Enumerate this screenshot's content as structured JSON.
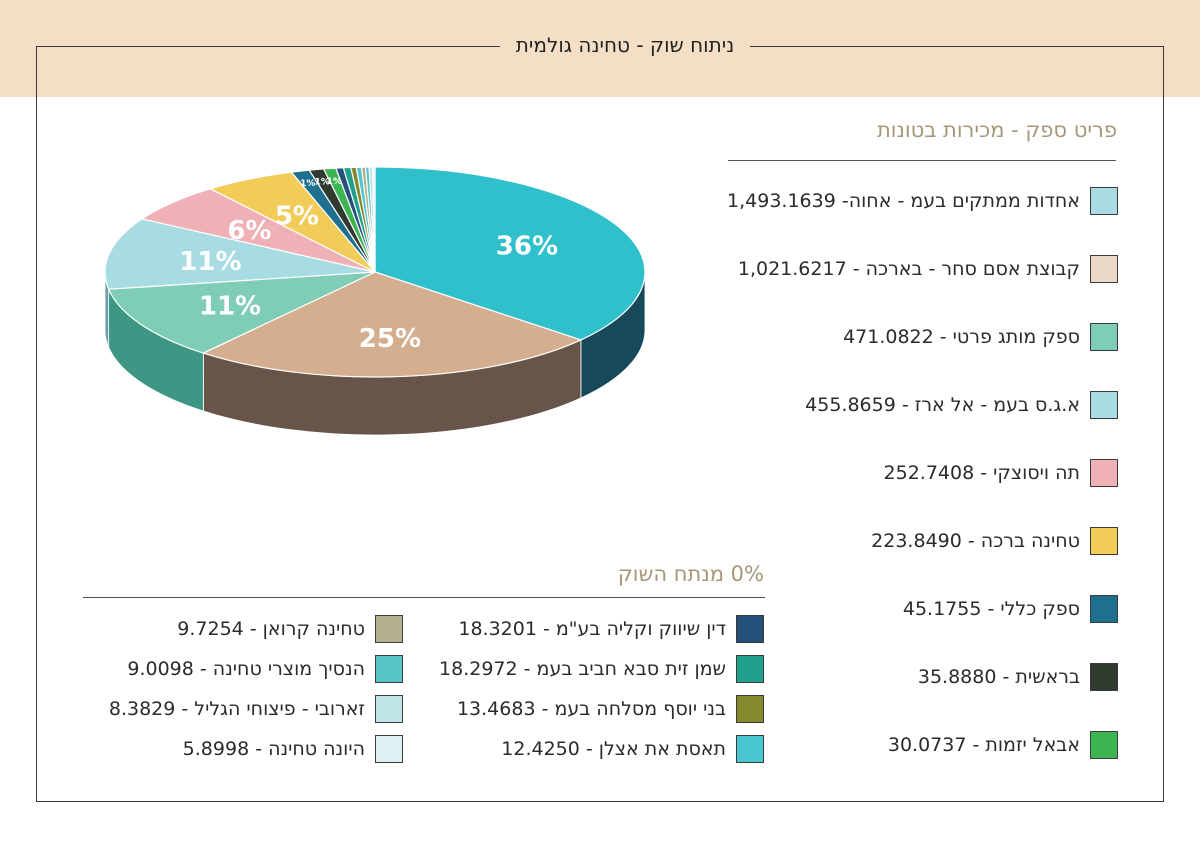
{
  "header": {
    "title": "ניתוח שוק - טחינה גולמית"
  },
  "main_legend": {
    "title": "פריט ספק  -  מכירות בטונות",
    "items": [
      {
        "label": "אחדות ממתקים בעמ - אחוה-  1,493.1639",
        "color": "#a9dbe5"
      },
      {
        "label": "קבוצת אסם סחר - בארכה  -  1,021.6217",
        "color": "#ead9c9"
      },
      {
        "label": "ספק מותג פרטי  -  471.0822",
        "color": "#7fcdb7"
      },
      {
        "label": "א.ג.ס בעמ - אל ארז  -  455.8659",
        "color": "#a7dce3"
      },
      {
        "label": "תה ויסוצקי  -  252.7408",
        "color": "#efb1b6"
      },
      {
        "label": "טחינה ברכה  -  223.8490",
        "color": "#f1cc58"
      },
      {
        "label": "ספק כללי  -  45.1755",
        "color": "#1f6f8f"
      },
      {
        "label": "בראשית  -  35.8880",
        "color": "#2e3b2e"
      },
      {
        "label": "אבאל יזמות  -  30.0737",
        "color": "#3cb452"
      }
    ]
  },
  "small_legend": {
    "title": "0% מנתח השוק",
    "col1": [
      {
        "label": "דין שיווק וקליה בע\"מ  -  18.3201",
        "color": "#25507a"
      },
      {
        "label": "שמן זית סבא חביב בעמ  -  18.2972",
        "color": "#22a08e"
      },
      {
        "label": "בני יוסף מסלחה בעמ  -  13.4683",
        "color": "#868a2e"
      },
      {
        "label": "תאסת את אצלן  -  12.4250",
        "color": "#4ac6d2"
      }
    ],
    "col2": [
      {
        "label": "טחינה קרואן  -  9.7254",
        "color": "#b2b08f"
      },
      {
        "label": "הנסיך מוצרי טחינה  -  9.0098",
        "color": "#5ac5c9"
      },
      {
        "label": "זארובי - פיצוחי הגליל  -  8.3829",
        "color": "#bfe5e8"
      },
      {
        "label": "היונה טחינה  -  5.8998",
        "color": "#ddf1f3"
      }
    ]
  },
  "chart_data": {
    "type": "pie",
    "title": "",
    "slices": [
      {
        "name": "אחדות ממתקים בעמ - אחוה",
        "value": 1493.1639,
        "label": "36%",
        "color": "#2fc0cc",
        "side": "#16495a"
      },
      {
        "name": "קבוצת אסם סחר - בארכה",
        "value": 1021.6217,
        "label": "25%",
        "color": "#d4ae8e",
        "side": "#67554a"
      },
      {
        "name": "ספק מותג פרטי",
        "value": 471.0822,
        "label": "11%",
        "color": "#7fcdb7",
        "side": "#3d9784"
      },
      {
        "name": "א.ג.ס בעמ - אל ארז",
        "value": 455.8659,
        "label": "11%",
        "color": "#a7dce3",
        "side": "#6b9ea6"
      },
      {
        "name": "תה ויסוצקי",
        "value": 252.7408,
        "label": "6%",
        "color": "#efb1b6",
        "side": "#b07a7f"
      },
      {
        "name": "טחינה ברכה",
        "value": 223.849,
        "label": "5%",
        "color": "#f1cc58",
        "side": "#b08f2e"
      },
      {
        "name": "ספק כללי",
        "value": 45.1755,
        "label": "1%",
        "color": "#1f6f8f",
        "side": "#134458"
      },
      {
        "name": "בראשית",
        "value": 35.888,
        "label": "1%",
        "color": "#2e3b2e",
        "side": "#1a221a"
      },
      {
        "name": "אבאל יזמות",
        "value": 30.0737,
        "label": "1%",
        "color": "#3cb452",
        "side": "#237033"
      },
      {
        "name": "דין שיווק וקליה בע\"מ",
        "value": 18.3201,
        "label": "",
        "color": "#25507a",
        "side": "#16304a"
      },
      {
        "name": "שמן זית סבא חביב בעמ",
        "value": 18.2972,
        "label": "",
        "color": "#22a08e",
        "side": "#146255"
      },
      {
        "name": "בני יוסף מסלחה בעמ",
        "value": 13.4683,
        "label": "",
        "color": "#868a2e",
        "side": "#54571c"
      },
      {
        "name": "תאסת את אצלן",
        "value": 12.425,
        "label": "",
        "color": "#4ac6d2",
        "side": "#2c7a82"
      },
      {
        "name": "טחינה קרואן",
        "value": 9.7254,
        "label": "",
        "color": "#b2b08f",
        "side": "#747259"
      },
      {
        "name": "הנסיך מוצרי טחינה",
        "value": 9.0098,
        "label": "",
        "color": "#5ac5c9",
        "side": "#37797c"
      },
      {
        "name": "זארובי - פיצוחי הגליל",
        "value": 8.3829,
        "label": "",
        "color": "#bfe5e8",
        "side": "#86a5a8"
      },
      {
        "name": "היונה טחינה",
        "value": 5.8998,
        "label": "",
        "color": "#ddf1f3",
        "side": "#9db0b2"
      }
    ]
  }
}
